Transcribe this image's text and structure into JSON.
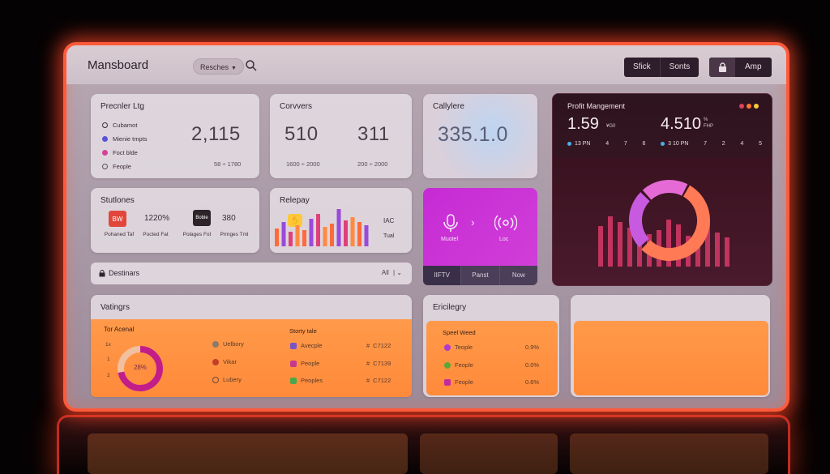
{
  "header": {
    "title": "Mansboard",
    "filter_label": "Resches",
    "actions": [
      "Sfick",
      "Sonts"
    ],
    "app_label": "Amp"
  },
  "premier": {
    "title": "Precnler Ltg",
    "items": [
      "Cubamot",
      "Mienie tmpts",
      "Foct blde",
      "Feople"
    ],
    "value": "2,115",
    "sub": "58 ÷ 1780"
  },
  "conversions": {
    "title": "Corvvers",
    "value_a": "510",
    "value_b": "311",
    "sub_a": "1600 ÷ 2000",
    "sub_b": "200 ÷ 2000"
  },
  "callylere": {
    "title": "Callylere",
    "value": "335.1.0"
  },
  "stations": {
    "title": "Stutlones",
    "badge1": "BW",
    "value1": "1220%",
    "badge2": "Bobie",
    "value2": "380",
    "labels": [
      "Pohaned Taf",
      "Pocted Fat",
      "Polages Fot",
      "Prmges Tml"
    ]
  },
  "replay": {
    "title": "Relepay",
    "label_a": "IAC",
    "label_b": "Tual",
    "bars": [
      22,
      30,
      18,
      26,
      20,
      34,
      40,
      24,
      28,
      46,
      32,
      36,
      30,
      26
    ]
  },
  "voice": {
    "label_a": "Muotel",
    "label_b": "Loc",
    "tabs": [
      "IIFTV",
      "Panst",
      "Now"
    ]
  },
  "profit": {
    "title": "Profit Mangement",
    "dot_colors": [
      "#e0405a",
      "#ff7a30",
      "#ffc83a"
    ],
    "value_a": "1.59",
    "value_a_unit": "¥G0",
    "value_b": "4.510",
    "value_b_unit_top": "%",
    "value_b_unit_bottom": "FHP",
    "axis": [
      "13 PN",
      "4",
      "7",
      "6",
      "3 10 PN",
      "7",
      "2",
      "4",
      "5"
    ],
    "bars": [
      50,
      62,
      55,
      48,
      70,
      40,
      45,
      58,
      52,
      38,
      46,
      60,
      42,
      36
    ],
    "donut": [
      {
        "value": 55,
        "color": "#ff7a55"
      },
      {
        "value": 25,
        "color": "#c85ae0"
      },
      {
        "value": 20,
        "color": "#e56ad6"
      }
    ]
  },
  "destinations": {
    "label": "Destinars",
    "all": "All"
  },
  "ratings": {
    "title": "Vatingrs",
    "sub_title": "Tor Acenal",
    "axis": [
      "1x",
      "1",
      "2"
    ],
    "donut_value": "28%",
    "donut_pct": 0.72,
    "legend": [
      "Uelbory",
      "Vikar",
      "Lubery"
    ],
    "list_title": "Storty tale",
    "rows": [
      {
        "name": "Avecple",
        "value": "C7122"
      },
      {
        "name": "People",
        "value": "C7139"
      },
      {
        "name": "Peoples",
        "value": "C7122"
      }
    ]
  },
  "ericlegry": {
    "title": "Ericilegry",
    "sub_title": "Speel Weed",
    "rows": [
      {
        "name": "Teople",
        "value": "0.9%"
      },
      {
        "name": "Feople",
        "value": "0.0%"
      },
      {
        "name": "Feople",
        "value": "0.6%"
      }
    ]
  }
}
